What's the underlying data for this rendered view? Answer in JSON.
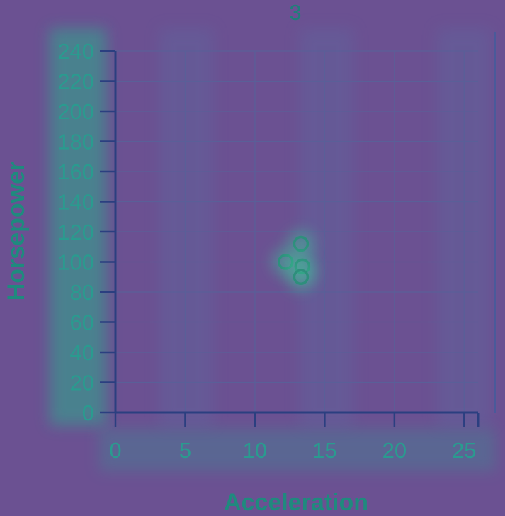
{
  "chart_data": {
    "type": "scatter",
    "title": "3",
    "xlabel": "Acceleration",
    "ylabel": "Horsepower",
    "xlim": [
      0,
      26
    ],
    "ylim": [
      0,
      240
    ],
    "xticks": [
      0,
      5,
      10,
      15,
      20,
      25
    ],
    "yticks": [
      0,
      20,
      40,
      60,
      80,
      100,
      120,
      140,
      160,
      180,
      200,
      220,
      240
    ],
    "grid": true,
    "series": [
      {
        "x": [
          12.2,
          13.3,
          13.4,
          13.3
        ],
        "y": [
          100,
          112,
          97,
          90
        ]
      }
    ],
    "colors": {
      "background": "#6b5192",
      "mark": "#2e8f7c",
      "axis": "#2b3f80",
      "grid": "#5a5f98",
      "text": "#2a9b8f"
    }
  }
}
